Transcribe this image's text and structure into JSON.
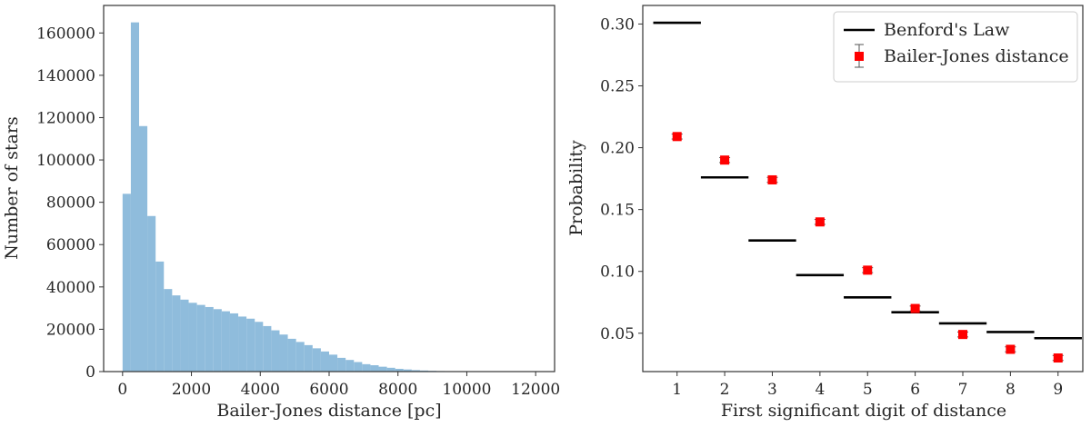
{
  "chart_data": [
    {
      "type": "bar",
      "xlabel": "Bailer-Jones distance [pc]",
      "ylabel": "Number of stars",
      "xlim": [
        -550,
        12550
      ],
      "ylim": [
        0,
        173000
      ],
      "xticks": [
        "0",
        "2000",
        "4000",
        "6000",
        "8000",
        "10000",
        "12000"
      ],
      "xtick_values": [
        0,
        2000,
        4000,
        6000,
        8000,
        10000,
        12000
      ],
      "yticks": [
        "0",
        "20000",
        "40000",
        "60000",
        "80000",
        "100000",
        "120000",
        "140000",
        "160000"
      ],
      "ytick_values": [
        0,
        20000,
        40000,
        60000,
        80000,
        100000,
        120000,
        140000,
        160000
      ],
      "bin_width": 240,
      "bin_start": 0,
      "values": [
        84000,
        165000,
        116000,
        73500,
        52000,
        39000,
        36000,
        34000,
        32500,
        31500,
        30500,
        29500,
        28500,
        27500,
        26000,
        25000,
        23500,
        21500,
        19500,
        17500,
        15500,
        14000,
        12500,
        11000,
        9500,
        8000,
        6500,
        5500,
        4500,
        3500,
        3000,
        2300,
        1800,
        1300,
        1000,
        700,
        500,
        350,
        250,
        180,
        120,
        80,
        50,
        30,
        20,
        10,
        5,
        2,
        1,
        0
      ],
      "color": "#8fbcdc",
      "grid": false
    },
    {
      "type": "scatter",
      "xlabel": "First significant digit of distance",
      "ylabel": "Probability",
      "xlim": [
        0.28,
        9.52
      ],
      "ylim": [
        0.019,
        0.315
      ],
      "xticks": [
        "1",
        "2",
        "3",
        "4",
        "5",
        "6",
        "7",
        "8",
        "9"
      ],
      "xtick_values": [
        1,
        2,
        3,
        4,
        5,
        6,
        7,
        8,
        9
      ],
      "yticks": [
        "0.05",
        "0.10",
        "0.15",
        "0.20",
        "0.25",
        "0.30"
      ],
      "ytick_values": [
        0.05,
        0.1,
        0.15,
        0.2,
        0.25,
        0.3
      ],
      "legend_position": "top-right",
      "grid": false,
      "series": [
        {
          "name": "Benford's Law",
          "style": "horizontal-segments",
          "color": "#000000",
          "x": [
            1,
            2,
            3,
            4,
            5,
            6,
            7,
            8,
            9
          ],
          "values": [
            0.301,
            0.176,
            0.125,
            0.097,
            0.079,
            0.067,
            0.058,
            0.051,
            0.046
          ]
        },
        {
          "name": "Bailer-Jones distance",
          "style": "square-markers-with-errorbars",
          "color": "#ff0000",
          "x": [
            1,
            2,
            3,
            4,
            5,
            6,
            7,
            8,
            9
          ],
          "values": [
            0.209,
            0.19,
            0.174,
            0.14,
            0.101,
            0.07,
            0.049,
            0.037,
            0.03
          ],
          "errors": [
            0.002,
            0.002,
            0.002,
            0.002,
            0.002,
            0.002,
            0.002,
            0.002,
            0.002
          ]
        }
      ]
    }
  ]
}
